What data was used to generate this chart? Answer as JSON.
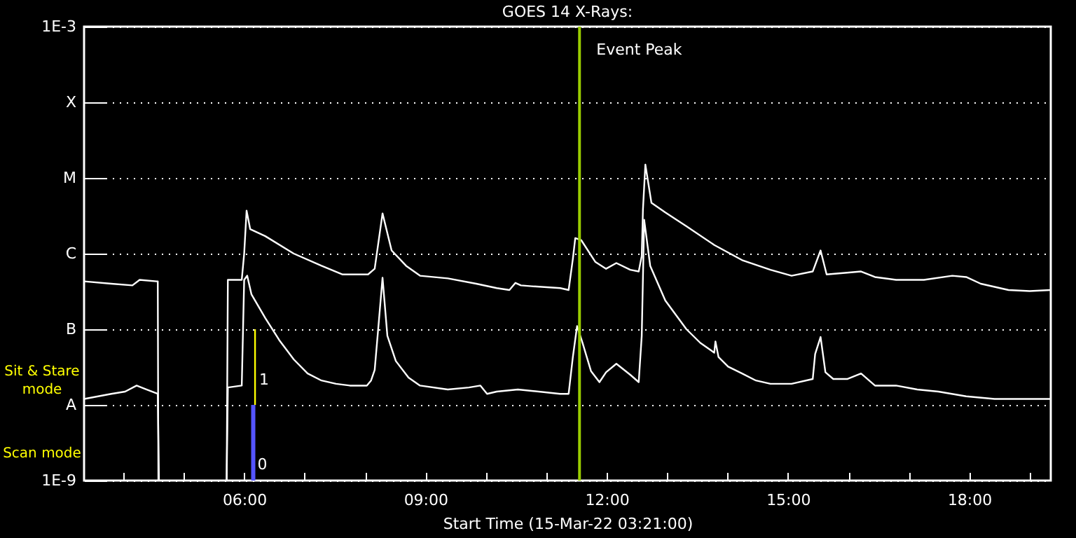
{
  "chart_data": {
    "type": "line",
    "title": "GOES 14 X-Rays:",
    "xlabel": "Start Time (15-Mar-22 03:21:00)",
    "log": "y",
    "grid": "y",
    "xlim": [
      3.35,
      19.35
    ],
    "ylim": [
      1e-09,
      0.001
    ],
    "xticks": [
      {
        "value": 4,
        "label": null
      },
      {
        "value": 5,
        "label": null
      },
      {
        "value": 6,
        "label": "06:00"
      },
      {
        "value": 7,
        "label": null
      },
      {
        "value": 8,
        "label": null
      },
      {
        "value": 9,
        "label": "09:00"
      },
      {
        "value": 10,
        "label": null
      },
      {
        "value": 11,
        "label": null
      },
      {
        "value": 12,
        "label": "12:00"
      },
      {
        "value": 13,
        "label": null
      },
      {
        "value": 14,
        "label": null
      },
      {
        "value": 15,
        "label": "15:00"
      },
      {
        "value": 16,
        "label": null
      },
      {
        "value": 17,
        "label": null
      },
      {
        "value": 18,
        "label": "18:00"
      },
      {
        "value": 19,
        "label": null
      }
    ],
    "yticks": [
      {
        "value": 1e-09,
        "label": "1E-9"
      },
      {
        "value": 1e-08,
        "label": "A"
      },
      {
        "value": 1e-07,
        "label": "B"
      },
      {
        "value": 1e-06,
        "label": "C"
      },
      {
        "value": 1e-05,
        "label": "M"
      },
      {
        "value": 0.0001,
        "label": "X"
      },
      {
        "value": 0.001,
        "label": "1E-3"
      }
    ],
    "series": [
      {
        "color": "#ffffff",
        "x": [
          3.35,
          3.8,
          4.15,
          4.27,
          4.55,
          4.57,
          4.58,
          5.15,
          5.71,
          5.73,
          5.96,
          6.0,
          6.04,
          6.1,
          6.35,
          6.82,
          7.28,
          7.63,
          8.05,
          8.16,
          8.29,
          8.44,
          8.68,
          8.91,
          9.37,
          9.84,
          10.18,
          10.39,
          10.49,
          10.58,
          10.76,
          11.23,
          11.37,
          11.44,
          11.48,
          11.58,
          11.81,
          11.99,
          12.16,
          12.39,
          12.53,
          12.58,
          12.6,
          12.64,
          12.74,
          12.97,
          13.32,
          13.78,
          14.24,
          14.71,
          15.06,
          15.41,
          15.54,
          15.64,
          15.98,
          16.21,
          16.44,
          16.79,
          17.25,
          17.72,
          17.95,
          18.19,
          18.65,
          19.0,
          19.35
        ],
        "values": [
          4.3e-07,
          4e-07,
          3.8e-07,
          4.5e-07,
          4.3e-07,
          4.3e-07,
          1e-09,
          null,
          1e-09,
          4.5e-07,
          4.5e-07,
          1e-06,
          3.7e-06,
          2.1e-06,
          1.7e-06,
          1e-06,
          6.9e-07,
          5.3e-07,
          5.3e-07,
          6.3e-07,
          3.4e-06,
          1.1e-06,
          6.9e-07,
          5.1e-07,
          4.7e-07,
          4e-07,
          3.5e-07,
          3.3e-07,
          4.1e-07,
          3.8e-07,
          3.7e-07,
          3.5e-07,
          3.3e-07,
          8.5e-07,
          1.6e-06,
          1.5e-06,
          7.8e-07,
          6.3e-07,
          7.5e-07,
          6.1e-07,
          5.8e-07,
          9.3e-07,
          3.8e-06,
          1.5e-05,
          4.7e-06,
          3.5e-06,
          2.3e-06,
          1.3e-06,
          8.2e-07,
          6.1e-07,
          5.1e-07,
          5.8e-07,
          1.1e-06,
          5.3e-07,
          5.6e-07,
          5.8e-07,
          4.9e-07,
          4.5e-07,
          4.5e-07,
          5.1e-07,
          4.9e-07,
          4e-07,
          3.3e-07,
          3.2e-07,
          3.3e-07
        ]
      },
      {
        "color": "#ffffff",
        "x": [
          3.35,
          3.8,
          4.03,
          4.22,
          4.38,
          4.57,
          4.59,
          5.15,
          5.71,
          5.73,
          5.96,
          6.0,
          6.05,
          6.12,
          6.35,
          6.58,
          6.82,
          7.05,
          7.28,
          7.52,
          7.75,
          8.03,
          8.1,
          8.16,
          8.23,
          8.29,
          8.37,
          8.51,
          8.72,
          8.91,
          9.37,
          9.72,
          9.91,
          10.02,
          10.18,
          10.53,
          11.23,
          11.37,
          11.44,
          11.51,
          11.6,
          11.74,
          11.88,
          11.99,
          12.16,
          12.39,
          12.53,
          12.58,
          12.62,
          12.72,
          12.97,
          13.32,
          13.55,
          13.78,
          13.8,
          13.85,
          14.01,
          14.24,
          14.47,
          14.71,
          15.06,
          15.41,
          15.45,
          15.54,
          15.62,
          15.75,
          15.98,
          16.21,
          16.44,
          16.79,
          17.14,
          17.49,
          17.95,
          18.42,
          18.89,
          19.35
        ],
        "values": [
          1.2e-08,
          1.4e-08,
          1.5e-08,
          1.8e-08,
          1.6e-08,
          1.4e-08,
          1e-09,
          null,
          1e-09,
          1.7e-08,
          1.8e-08,
          4.5e-07,
          5.1e-07,
          2.9e-07,
          1.4e-07,
          7.2e-08,
          4e-08,
          2.6e-08,
          2.1e-08,
          1.9e-08,
          1.8e-08,
          1.8e-08,
          2.1e-08,
          2.9e-08,
          1.3e-07,
          4.8e-07,
          8.2e-08,
          3.8e-08,
          2.3e-08,
          1.8e-08,
          1.6e-08,
          1.7e-08,
          1.8e-08,
          1.4e-08,
          1.5e-08,
          1.6e-08,
          1.4e-08,
          1.4e-08,
          4.3e-08,
          1.1e-07,
          6.6e-08,
          2.8e-08,
          2e-08,
          2.7e-08,
          3.5e-08,
          2.5e-08,
          2e-08,
          8.2e-08,
          2.8e-06,
          6.9e-07,
          2.4e-07,
          1e-07,
          6.6e-08,
          4.9e-08,
          6.9e-08,
          4.3e-08,
          3.2e-08,
          2.6e-08,
          2.1e-08,
          1.9e-08,
          1.9e-08,
          2.2e-08,
          4.7e-08,
          7.9e-08,
          2.7e-08,
          2.2e-08,
          2.2e-08,
          2.6e-08,
          1.8e-08,
          1.8e-08,
          1.6e-08,
          1.5e-08,
          1.3e-08,
          1.2e-08,
          1.2e-08,
          1.2e-08
        ]
      },
      {
        "color": "#ffff00",
        "x": [
          6.18,
          6.18
        ],
        "values": [
          1e-07,
          1e-08
        ]
      },
      {
        "color": "#5555ff",
        "x": [
          6.15,
          6.15
        ],
        "values": [
          1e-08,
          1e-09
        ]
      }
    ],
    "ref_lines": [
      {
        "axis": "x",
        "value": 11.55,
        "label": "Event Peak",
        "color": "#99cc00"
      }
    ],
    "annotations": [
      "Sit & Stare\nmode",
      "Scan mode",
      {
        "text": "1",
        "x": 6.18,
        "y": 2.1e-08
      },
      {
        "text": "0",
        "x": 6.15,
        "y": 1.6e-09
      }
    ]
  }
}
